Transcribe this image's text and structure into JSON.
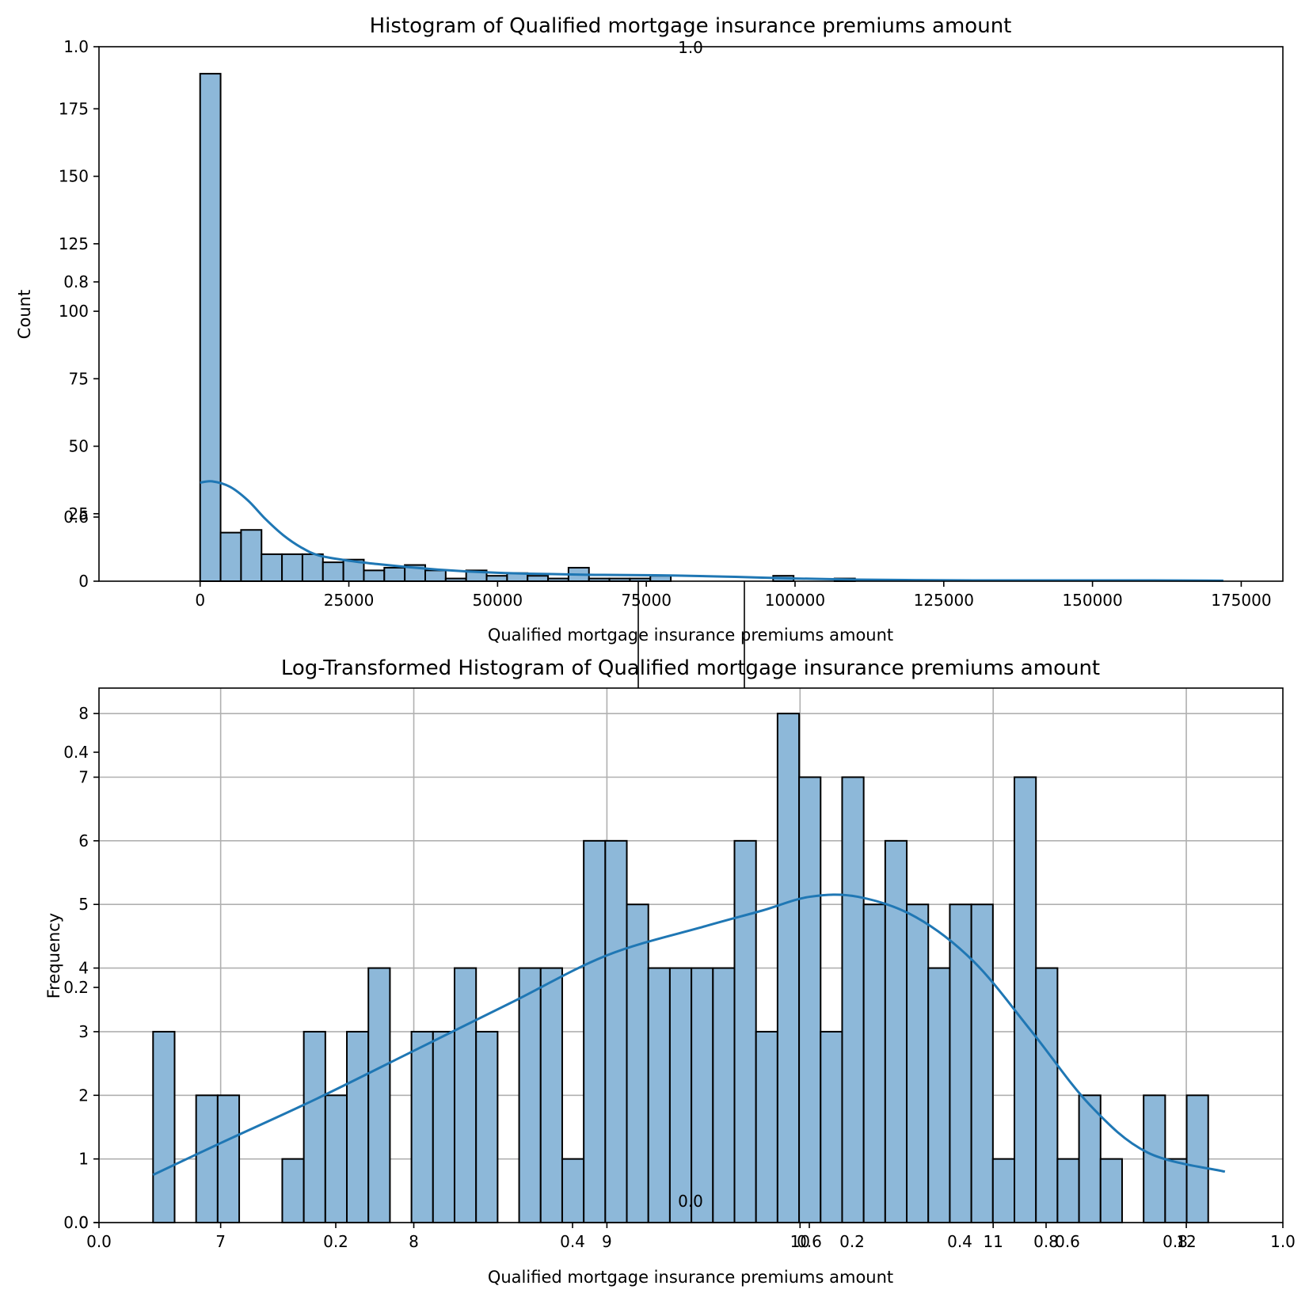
{
  "chart_data": [
    {
      "type": "histogram",
      "title": "Histogram of Qualified mortgage insurance premiums amount",
      "xlabel": "Qualified mortgage insurance premiums amount",
      "ylabel": "Count",
      "xlim": [
        -17000,
        182000
      ],
      "ylim": [
        0,
        198
      ],
      "xticks": [
        0,
        25000,
        50000,
        75000,
        100000,
        125000,
        150000,
        175000
      ],
      "yticks": [
        0,
        25,
        50,
        75,
        100,
        125,
        150,
        175
      ],
      "bin_start": 0,
      "bin_width": 3440,
      "counts": [
        188,
        18,
        19,
        10,
        10,
        10,
        7,
        8,
        4,
        5,
        6,
        4,
        1,
        4,
        2,
        3,
        2,
        1,
        5,
        1,
        1,
        1,
        2,
        0,
        0,
        0,
        0,
        0,
        2,
        0,
        0,
        1,
        0,
        0,
        0,
        0,
        0,
        0,
        0,
        0,
        0,
        0,
        0,
        0,
        0,
        0,
        0,
        0,
        0,
        0
      ],
      "kde": {
        "x": [
          0,
          2000,
          5000,
          8000,
          11000,
          14000,
          17000,
          20000,
          25000,
          30000,
          35000,
          40000,
          45000,
          50000,
          55000,
          60000,
          65000,
          70000,
          80000,
          90000,
          100000,
          110000,
          120000,
          130000,
          140000,
          150000,
          160000,
          172000
        ],
        "y": [
          36.5,
          37.0,
          35.0,
          30.0,
          23.0,
          17.0,
          12.5,
          9.5,
          7.6,
          6.3,
          5.2,
          4.3,
          3.6,
          3.1,
          2.8,
          2.6,
          2.4,
          2.3,
          2.1,
          1.6,
          1.0,
          0.6,
          0.4,
          0.3,
          0.3,
          0.3,
          0.3,
          0.2
        ]
      },
      "grid": false
    },
    {
      "type": "histogram",
      "title": "Log-Transformed Histogram of Qualified mortgage insurance premiums amount",
      "xlabel": "Qualified mortgage insurance premiums amount",
      "ylabel": "Frequency",
      "xlim": [
        6.37,
        12.5
      ],
      "ylim": [
        0,
        8.4
      ],
      "xticks": [
        7,
        8,
        9,
        10,
        11,
        12
      ],
      "yticks": [
        0,
        1,
        2,
        3,
        4,
        5,
        6,
        7,
        8
      ],
      "bin_start": 6.65,
      "bin_width": 0.1115,
      "counts": [
        3,
        0,
        2,
        2,
        0,
        0,
        1,
        3,
        2,
        3,
        4,
        0,
        3,
        3,
        4,
        3,
        0,
        4,
        4,
        1,
        6,
        6,
        5,
        4,
        4,
        4,
        4,
        6,
        3,
        8,
        7,
        3,
        7,
        5,
        6,
        5,
        4,
        5,
        5,
        1,
        7,
        4,
        1,
        2,
        1,
        0,
        2,
        1,
        2
      ],
      "kde": {
        "x": [
          6.65,
          7.0,
          7.5,
          8.0,
          8.5,
          9.0,
          9.5,
          9.8,
          10.05,
          10.3,
          10.6,
          10.9,
          11.2,
          11.5,
          11.8,
          12.2
        ],
        "y": [
          0.75,
          1.25,
          1.95,
          2.7,
          3.45,
          4.2,
          4.65,
          4.9,
          5.12,
          5.12,
          4.8,
          4.1,
          3.0,
          1.85,
          1.1,
          0.8
        ]
      },
      "grid": true
    }
  ],
  "overlay_axis": {
    "xticks": [
      "0.0",
      "0.2",
      "0.4",
      "0.6",
      "0.8",
      "1.0"
    ],
    "yticks": [
      "0.0",
      "0.2",
      "0.4",
      "0.6",
      "0.8",
      "1.0"
    ]
  },
  "overlay_axis_secondary": {
    "xticks": [
      "0.0",
      "0.2",
      "0.4",
      "0.6",
      "0.8",
      "1.0"
    ],
    "yticks": [
      "0.0",
      "0.2",
      "0.4",
      "0.6",
      "0.8",
      "1.0"
    ]
  }
}
